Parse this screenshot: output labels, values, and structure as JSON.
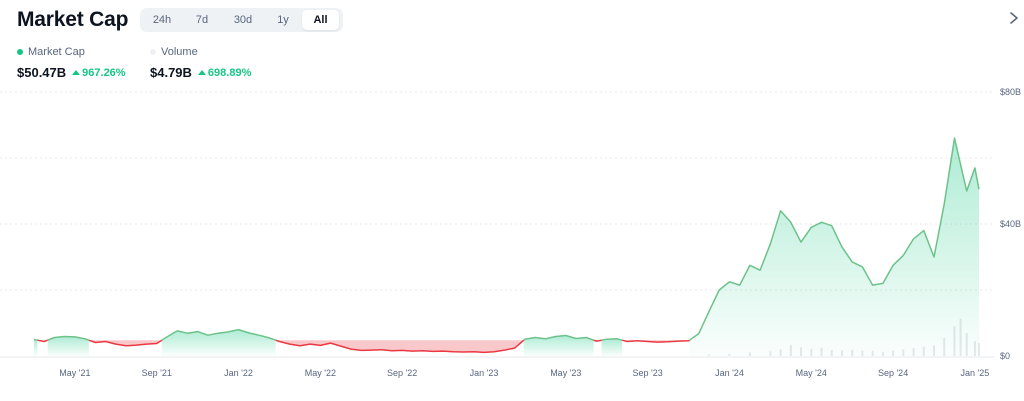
{
  "header": {
    "title": "Market Cap",
    "ranges": [
      {
        "label": "24h",
        "active": false
      },
      {
        "label": "7d",
        "active": false
      },
      {
        "label": "30d",
        "active": false
      },
      {
        "label": "1y",
        "active": false
      },
      {
        "label": "All",
        "active": true
      }
    ],
    "expand_icon": "chevron-right-icon"
  },
  "legend": {
    "market_cap_label": "Market Cap",
    "volume_label": "Volume"
  },
  "stats": {
    "market_cap_value": "$50.47B",
    "market_cap_change": "967.26%",
    "volume_value": "$4.79B",
    "volume_change": "698.89%"
  },
  "colors": {
    "up": "#16c784",
    "line_up": "#6cc28a",
    "down": "#ea3943",
    "grid": "#e6e9ed",
    "volume": "#d5d9df"
  },
  "chart_data": {
    "type": "area",
    "y_ticks": [
      "$80B",
      "$40B",
      "$0"
    ],
    "y_tick_values": [
      80,
      40,
      0
    ],
    "ylim": [
      0,
      80
    ],
    "x_ticks": [
      "May '21",
      "Sep '21",
      "Jan '22",
      "May '22",
      "Sep '22",
      "Jan '23",
      "May '23",
      "Sep '23",
      "Jan '24",
      "May '24",
      "Sep '24",
      "Jan '25"
    ],
    "x_tick_months": [
      2,
      6,
      10,
      14,
      18,
      22,
      26,
      30,
      34,
      38,
      42,
      46
    ],
    "xlim_months": [
      0,
      46.2
    ],
    "baseline_value": 4.8,
    "series": [
      {
        "points_month_value": [
          [
            0,
            5.0
          ],
          [
            0.5,
            4.4
          ],
          [
            1,
            5.6
          ],
          [
            1.5,
            5.9
          ],
          [
            2,
            5.8
          ],
          [
            2.5,
            5.2
          ],
          [
            3,
            4.1
          ],
          [
            3.5,
            4.4
          ],
          [
            4,
            3.6
          ],
          [
            4.5,
            3.1
          ],
          [
            5,
            3.3
          ],
          [
            5.5,
            3.6
          ],
          [
            6,
            3.8
          ],
          [
            6.5,
            5.8
          ],
          [
            7,
            7.6
          ],
          [
            7.5,
            6.9
          ],
          [
            8,
            7.4
          ],
          [
            8.5,
            6.3
          ],
          [
            9,
            6.9
          ],
          [
            9.5,
            7.3
          ],
          [
            10,
            8.0
          ],
          [
            10.5,
            7.0
          ],
          [
            11,
            6.3
          ],
          [
            11.5,
            5.5
          ],
          [
            12,
            4.4
          ],
          [
            12.5,
            3.6
          ],
          [
            13,
            3.1
          ],
          [
            13.5,
            3.6
          ],
          [
            14,
            3.2
          ],
          [
            14.5,
            3.9
          ],
          [
            15,
            3.0
          ],
          [
            15.5,
            2.1
          ],
          [
            16,
            1.7
          ],
          [
            16.5,
            1.8
          ],
          [
            17,
            1.9
          ],
          [
            17.5,
            1.6
          ],
          [
            18,
            1.7
          ],
          [
            18.5,
            1.5
          ],
          [
            19,
            1.6
          ],
          [
            19.5,
            1.4
          ],
          [
            20,
            1.5
          ],
          [
            20.5,
            1.3
          ],
          [
            21,
            1.2
          ],
          [
            21.5,
            1.3
          ],
          [
            22,
            1.1
          ],
          [
            22.5,
            1.3
          ],
          [
            23,
            1.8
          ],
          [
            23.5,
            2.4
          ],
          [
            24,
            5.1
          ],
          [
            24.5,
            5.6
          ],
          [
            25,
            5.2
          ],
          [
            25.5,
            5.9
          ],
          [
            26,
            6.2
          ],
          [
            26.5,
            5.3
          ],
          [
            27,
            5.6
          ],
          [
            27.5,
            4.5
          ],
          [
            28,
            5.1
          ],
          [
            28.5,
            5.2
          ],
          [
            29,
            4.4
          ],
          [
            29.5,
            4.6
          ],
          [
            30,
            4.4
          ],
          [
            30.5,
            4.2
          ],
          [
            31,
            4.3
          ],
          [
            31.5,
            4.5
          ],
          [
            32,
            4.6
          ],
          [
            32.5,
            6.8
          ],
          [
            33,
            13.5
          ],
          [
            33.5,
            20.0
          ],
          [
            34,
            22.5
          ],
          [
            34.5,
            21.5
          ],
          [
            35,
            27.5
          ],
          [
            35.5,
            26.0
          ],
          [
            36,
            34.0
          ],
          [
            36.5,
            44.0
          ],
          [
            37,
            40.5
          ],
          [
            37.5,
            34.5
          ],
          [
            38,
            39.0
          ],
          [
            38.5,
            40.5
          ],
          [
            39,
            39.5
          ],
          [
            39.5,
            33.0
          ],
          [
            40,
            28.5
          ],
          [
            40.5,
            27.0
          ],
          [
            41,
            21.5
          ],
          [
            41.5,
            22.0
          ],
          [
            42,
            27.5
          ],
          [
            42.5,
            30.5
          ],
          [
            43,
            35.5
          ],
          [
            43.5,
            38.0
          ],
          [
            44,
            30.0
          ],
          [
            44.5,
            46.0
          ],
          [
            45,
            66.0
          ],
          [
            45.3,
            58.0
          ],
          [
            45.6,
            50.0
          ],
          [
            46.0,
            57.0
          ],
          [
            46.2,
            50.5
          ]
        ]
      }
    ],
    "volume_bars_month_value": [
      [
        33,
        0.4
      ],
      [
        34,
        0.6
      ],
      [
        35,
        1.1
      ],
      [
        36,
        1.4
      ],
      [
        36.5,
        2.0
      ],
      [
        37,
        3.4
      ],
      [
        37.5,
        2.6
      ],
      [
        38,
        2.2
      ],
      [
        38.5,
        2.5
      ],
      [
        39,
        1.8
      ],
      [
        39.5,
        1.7
      ],
      [
        40,
        1.9
      ],
      [
        40.5,
        1.6
      ],
      [
        41,
        1.5
      ],
      [
        41.5,
        1.3
      ],
      [
        42,
        1.6
      ],
      [
        42.5,
        2.0
      ],
      [
        43,
        2.4
      ],
      [
        43.5,
        2.8
      ],
      [
        44,
        3.2
      ],
      [
        44.5,
        5.5
      ],
      [
        45,
        9.0
      ],
      [
        45.3,
        11.2
      ],
      [
        45.6,
        7.0
      ],
      [
        46.0,
        4.5
      ],
      [
        46.2,
        3.9
      ]
    ]
  }
}
